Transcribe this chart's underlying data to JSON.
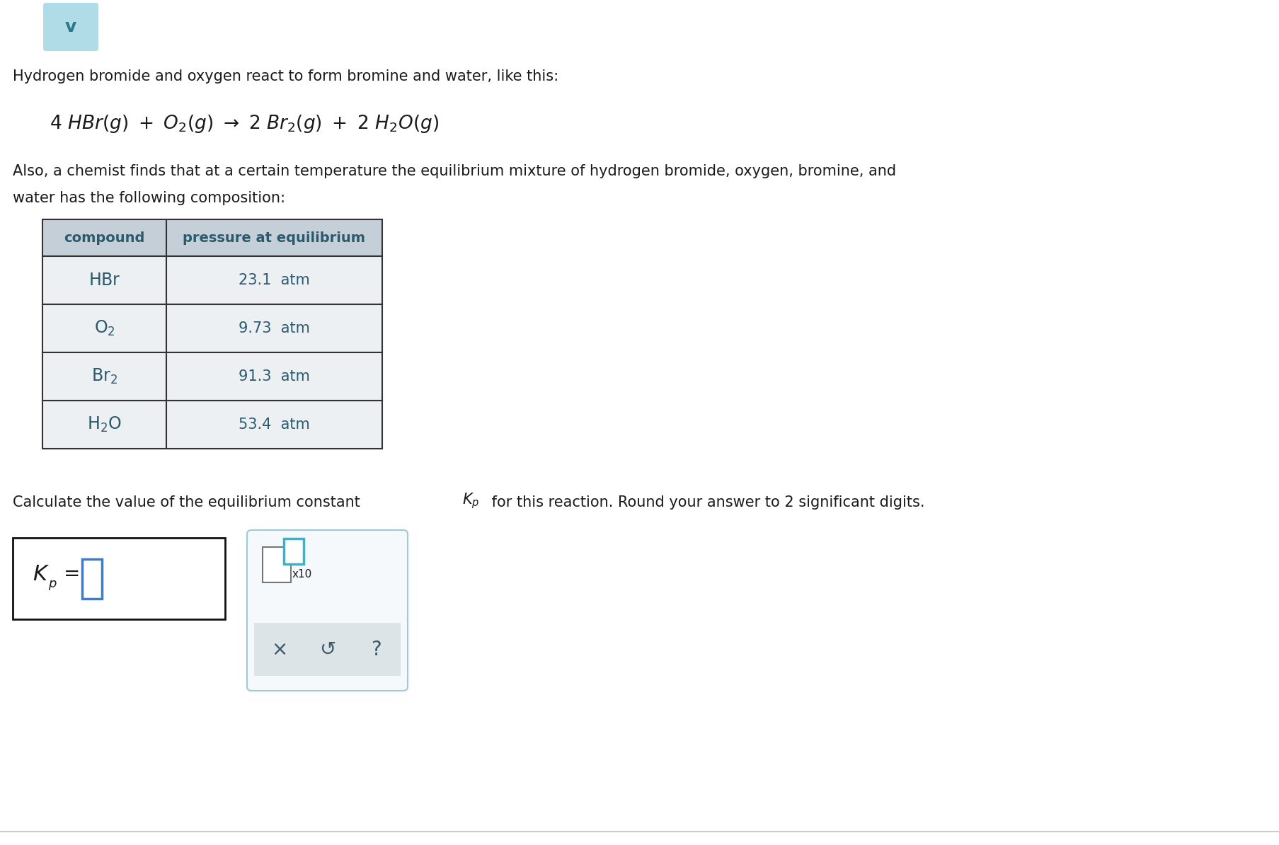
{
  "bg_color": "#ffffff",
  "text_color": "#1a1a1a",
  "table_header_bg": "#c5cfd8",
  "table_row_bg": "#edf0f3",
  "table_border_color": "#333333",
  "table_text_color": "#2a5a6e",
  "intro_text": "Hydrogen bromide and oxygen react to form bromine and water, like this:",
  "also_text1": "Also, a chemist finds that at a certain temperature the equilibrium mixture of hydrogen bromide, oxygen, bromine, and",
  "also_text2": "water has the following composition:",
  "table_col1_header": "compound",
  "table_col2_header": "pressure at equilibrium",
  "table_compounds_math": [
    "$\\mathrm{HBr}$",
    "$\\mathrm{O_2}$",
    "$\\mathrm{Br_2}$",
    "$\\mathrm{H_2O}$"
  ],
  "table_pressures": [
    "23.1  atm",
    "9.73  atm",
    "91.3  atm",
    "53.4  atm"
  ],
  "calc_text_pre": "Calculate the value of the equilibrium constant ",
  "calc_text_post": " for this reaction. Round your answer to 2 significant digits.",
  "chevron_color": "#b0dce8",
  "answer_box_border": "#111111",
  "answer_box_bg": "#ffffff",
  "input_box_color": "#3a7ed4",
  "input_box2_color": "#4aadbe",
  "calc_panel_bg": "#f5f9fb",
  "calc_panel_border": "#a0c8d8",
  "calc_buttons_bg": "#dce4e8",
  "bottom_border_color": "#cccccc"
}
